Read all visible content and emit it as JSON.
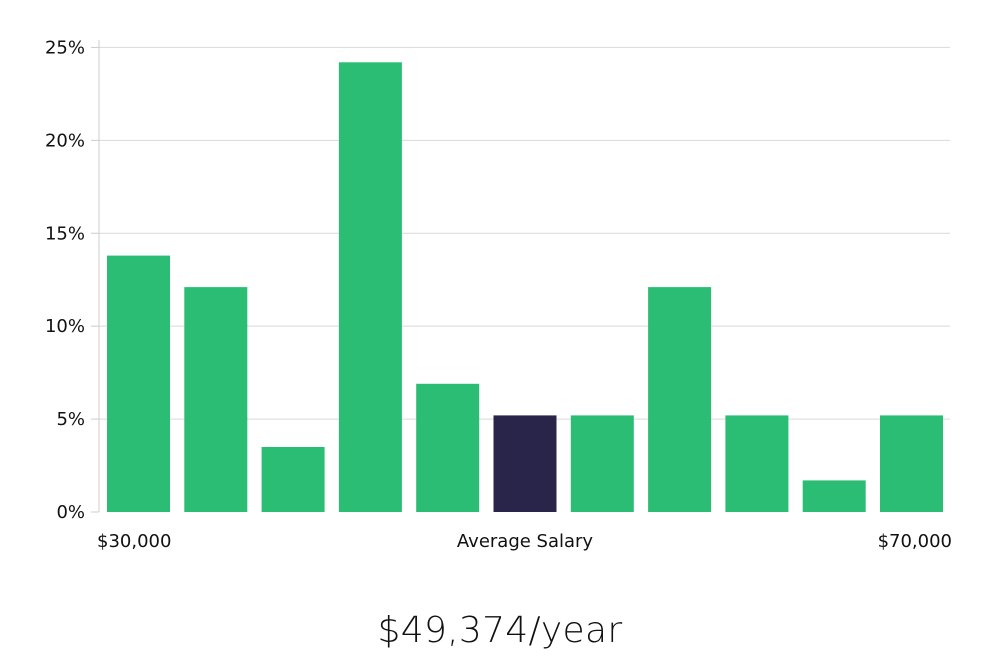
{
  "chart_data": {
    "type": "bar",
    "y_tick_labels": [
      "0%",
      "5%",
      "10%",
      "15%",
      "20%",
      "25%"
    ],
    "y_ticks": [
      0,
      5,
      10,
      15,
      20,
      25
    ],
    "ylim": [
      0,
      25.4
    ],
    "values": [
      13.8,
      12.1,
      3.5,
      24.2,
      6.9,
      5.2,
      5.2,
      12.1,
      5.2,
      1.7,
      5.2
    ],
    "highlight_index": 5,
    "x_labels": {
      "left": "$30,000",
      "center": "Average Salary",
      "right": "$70,000"
    },
    "grid": true,
    "colors": {
      "bar": "#2bbd74",
      "highlight": "#29244a",
      "grid": "#d9d9d9",
      "axis": "#cccccc"
    }
  },
  "salary_text": "$49,374/year"
}
